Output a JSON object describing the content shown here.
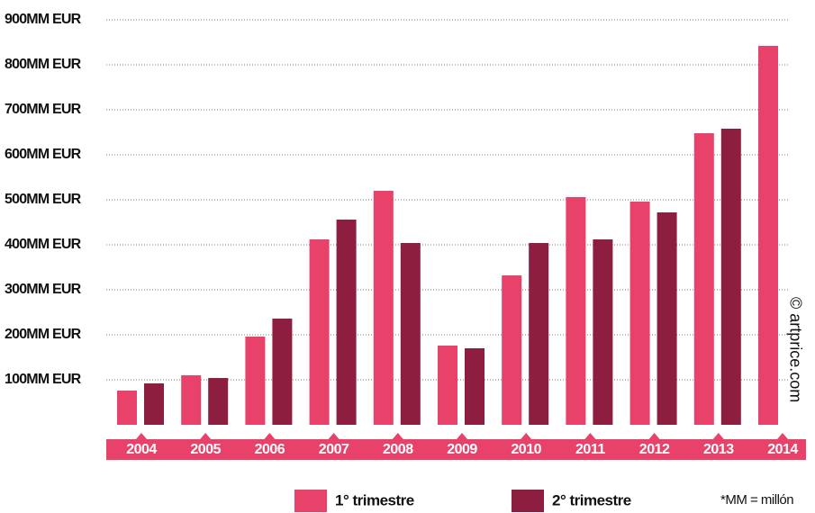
{
  "chart_data": {
    "type": "bar",
    "categories": [
      "2004",
      "2005",
      "2006",
      "2007",
      "2008",
      "2009",
      "2010",
      "2011",
      "2012",
      "2013",
      "2014"
    ],
    "series": [
      {
        "name": "1° trimestre",
        "color": "#e8416a",
        "values": [
          76,
          110,
          196,
          412,
          520,
          176,
          332,
          506,
          496,
          648,
          842
        ]
      },
      {
        "name": "2° trimestre",
        "color": "#8e1e40",
        "values": [
          92,
          104,
          236,
          456,
          404,
          170,
          404,
          412,
          472,
          658,
          null
        ]
      }
    ],
    "ylim": [
      0,
      900
    ],
    "yticks": [
      {
        "value": 100,
        "label": "100MM EUR"
      },
      {
        "value": 200,
        "label": "200MM EUR"
      },
      {
        "value": 300,
        "label": "300MM EUR"
      },
      {
        "value": 400,
        "label": "400MM EUR"
      },
      {
        "value": 500,
        "label": "500MM EUR"
      },
      {
        "value": 600,
        "label": "600MM EUR"
      },
      {
        "value": 700,
        "label": "700MM EUR"
      },
      {
        "value": 800,
        "label": "800MM EUR"
      },
      {
        "value": 900,
        "label": "900MM EUR"
      }
    ],
    "grid": true,
    "note": "*MM = millón",
    "source": "© artprice.com"
  }
}
